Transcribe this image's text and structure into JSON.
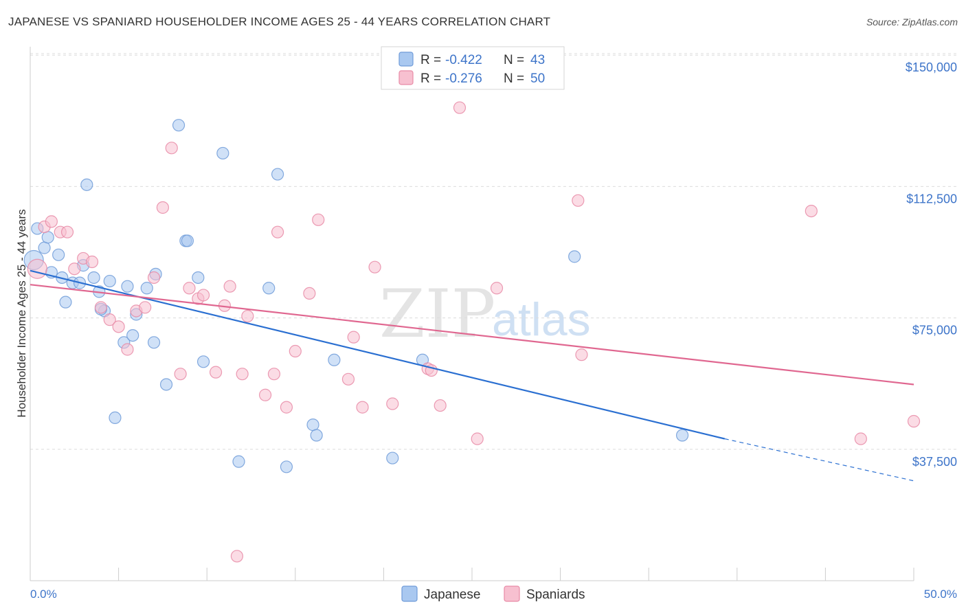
{
  "title": "JAPANESE VS SPANIARD HOUSEHOLDER INCOME AGES 25 - 44 YEARS CORRELATION CHART",
  "source": "Source: ZipAtlas.com",
  "watermark": {
    "zip": "ZIP",
    "atlas": "atlas"
  },
  "legend_top": {
    "rows": [
      {
        "r_label": "R = ",
        "r_value": "-0.422",
        "n_label": "N = ",
        "n_value": "43",
        "color": "#a9c8f0",
        "stroke": "#6f9bd8"
      },
      {
        "r_label": "R = ",
        "r_value": "-0.276",
        "n_label": "N = ",
        "n_value": "50",
        "color": "#f7c0d0",
        "stroke": "#e88aa6"
      }
    ]
  },
  "legend_bottom": [
    {
      "label": "Japanese",
      "color": "#a9c8f0",
      "stroke": "#6f9bd8"
    },
    {
      "label": "Spaniards",
      "color": "#f7c0d0",
      "stroke": "#e88aa6"
    }
  ],
  "chart_data": {
    "type": "scatter",
    "ylabel": "Householder Income Ages 25 - 44 years",
    "xlim": [
      0,
      50
    ],
    "ylim": [
      0,
      152000
    ],
    "x_tick_labels": [
      "0.0%",
      "50.0%"
    ],
    "y_ticks": [
      37500,
      75000,
      112500,
      150000
    ],
    "y_tick_labels": [
      "$37,500",
      "$75,000",
      "$112,500",
      "$150,000"
    ],
    "grid": true,
    "series": [
      {
        "name": "Japanese",
        "color": "#6f9bd8",
        "fill": "#a9c8f0",
        "trend": {
          "x0": 0,
          "y0": 88500,
          "x1": 39.3,
          "y1": 40500,
          "dash_to_x": 50,
          "dash_to_y": 28500,
          "color": "#2a6fd1"
        },
        "points": [
          [
            0.2,
            91500
          ],
          [
            0.4,
            100500
          ],
          [
            0.8,
            95000
          ],
          [
            1.0,
            98000
          ],
          [
            1.2,
            88000
          ],
          [
            1.6,
            93000
          ],
          [
            1.8,
            86500
          ],
          [
            2.0,
            79500
          ],
          [
            2.4,
            85000
          ],
          [
            2.8,
            85000
          ],
          [
            3.0,
            90000
          ],
          [
            3.2,
            113000
          ],
          [
            3.6,
            86500
          ],
          [
            3.9,
            82500
          ],
          [
            4.2,
            77000
          ],
          [
            4.5,
            85500
          ],
          [
            4.8,
            46500
          ],
          [
            5.3,
            68000
          ],
          [
            5.5,
            84000
          ],
          [
            5.8,
            70000
          ],
          [
            6.0,
            76000
          ],
          [
            6.6,
            83500
          ],
          [
            7.0,
            68000
          ],
          [
            7.1,
            87500
          ],
          [
            7.7,
            56000
          ],
          [
            8.4,
            130000
          ],
          [
            8.8,
            97000
          ],
          [
            8.9,
            97000
          ],
          [
            9.5,
            86500
          ],
          [
            9.8,
            62500
          ],
          [
            10.9,
            122000
          ],
          [
            11.8,
            34000
          ],
          [
            13.5,
            83500
          ],
          [
            14.0,
            116000
          ],
          [
            14.5,
            32500
          ],
          [
            16.0,
            44500
          ],
          [
            16.2,
            41500
          ],
          [
            17.2,
            63000
          ],
          [
            20.5,
            35000
          ],
          [
            22.2,
            63000
          ],
          [
            30.8,
            92500
          ],
          [
            36.9,
            41500
          ],
          [
            4.0,
            77500
          ]
        ]
      },
      {
        "name": "Spaniards",
        "color": "#e88aa6",
        "fill": "#f7c0d0",
        "trend": {
          "x0": 0,
          "y0": 84500,
          "x1": 50,
          "y1": 56000,
          "color": "#e06790"
        },
        "points": [
          [
            0.4,
            89000
          ],
          [
            0.8,
            101000
          ],
          [
            1.2,
            102500
          ],
          [
            1.7,
            99500
          ],
          [
            2.1,
            99500
          ],
          [
            2.5,
            89000
          ],
          [
            3.0,
            92000
          ],
          [
            3.5,
            91000
          ],
          [
            4.0,
            78000
          ],
          [
            4.5,
            74500
          ],
          [
            5.0,
            72500
          ],
          [
            5.5,
            66000
          ],
          [
            6.0,
            77000
          ],
          [
            6.5,
            78000
          ],
          [
            7.0,
            86500
          ],
          [
            7.5,
            106500
          ],
          [
            8.0,
            123500
          ],
          [
            8.5,
            59000
          ],
          [
            9.0,
            83500
          ],
          [
            9.5,
            80500
          ],
          [
            9.8,
            81500
          ],
          [
            10.5,
            59500
          ],
          [
            11.0,
            78500
          ],
          [
            11.3,
            84000
          ],
          [
            12.0,
            59000
          ],
          [
            12.3,
            75500
          ],
          [
            13.3,
            53000
          ],
          [
            13.8,
            59000
          ],
          [
            14.0,
            99500
          ],
          [
            14.5,
            49500
          ],
          [
            15.0,
            65500
          ],
          [
            15.8,
            82000
          ],
          [
            16.3,
            103000
          ],
          [
            18.0,
            57500
          ],
          [
            18.3,
            69500
          ],
          [
            18.8,
            49500
          ],
          [
            19.5,
            89500
          ],
          [
            20.5,
            50500
          ],
          [
            22.5,
            60500
          ],
          [
            22.7,
            60000
          ],
          [
            23.2,
            50000
          ],
          [
            24.3,
            135000
          ],
          [
            25.3,
            40500
          ],
          [
            26.4,
            83500
          ],
          [
            31.0,
            108500
          ],
          [
            31.2,
            64500
          ],
          [
            11.7,
            7000
          ],
          [
            44.2,
            105500
          ],
          [
            47.0,
            40500
          ],
          [
            50.0,
            45500
          ]
        ]
      }
    ]
  }
}
